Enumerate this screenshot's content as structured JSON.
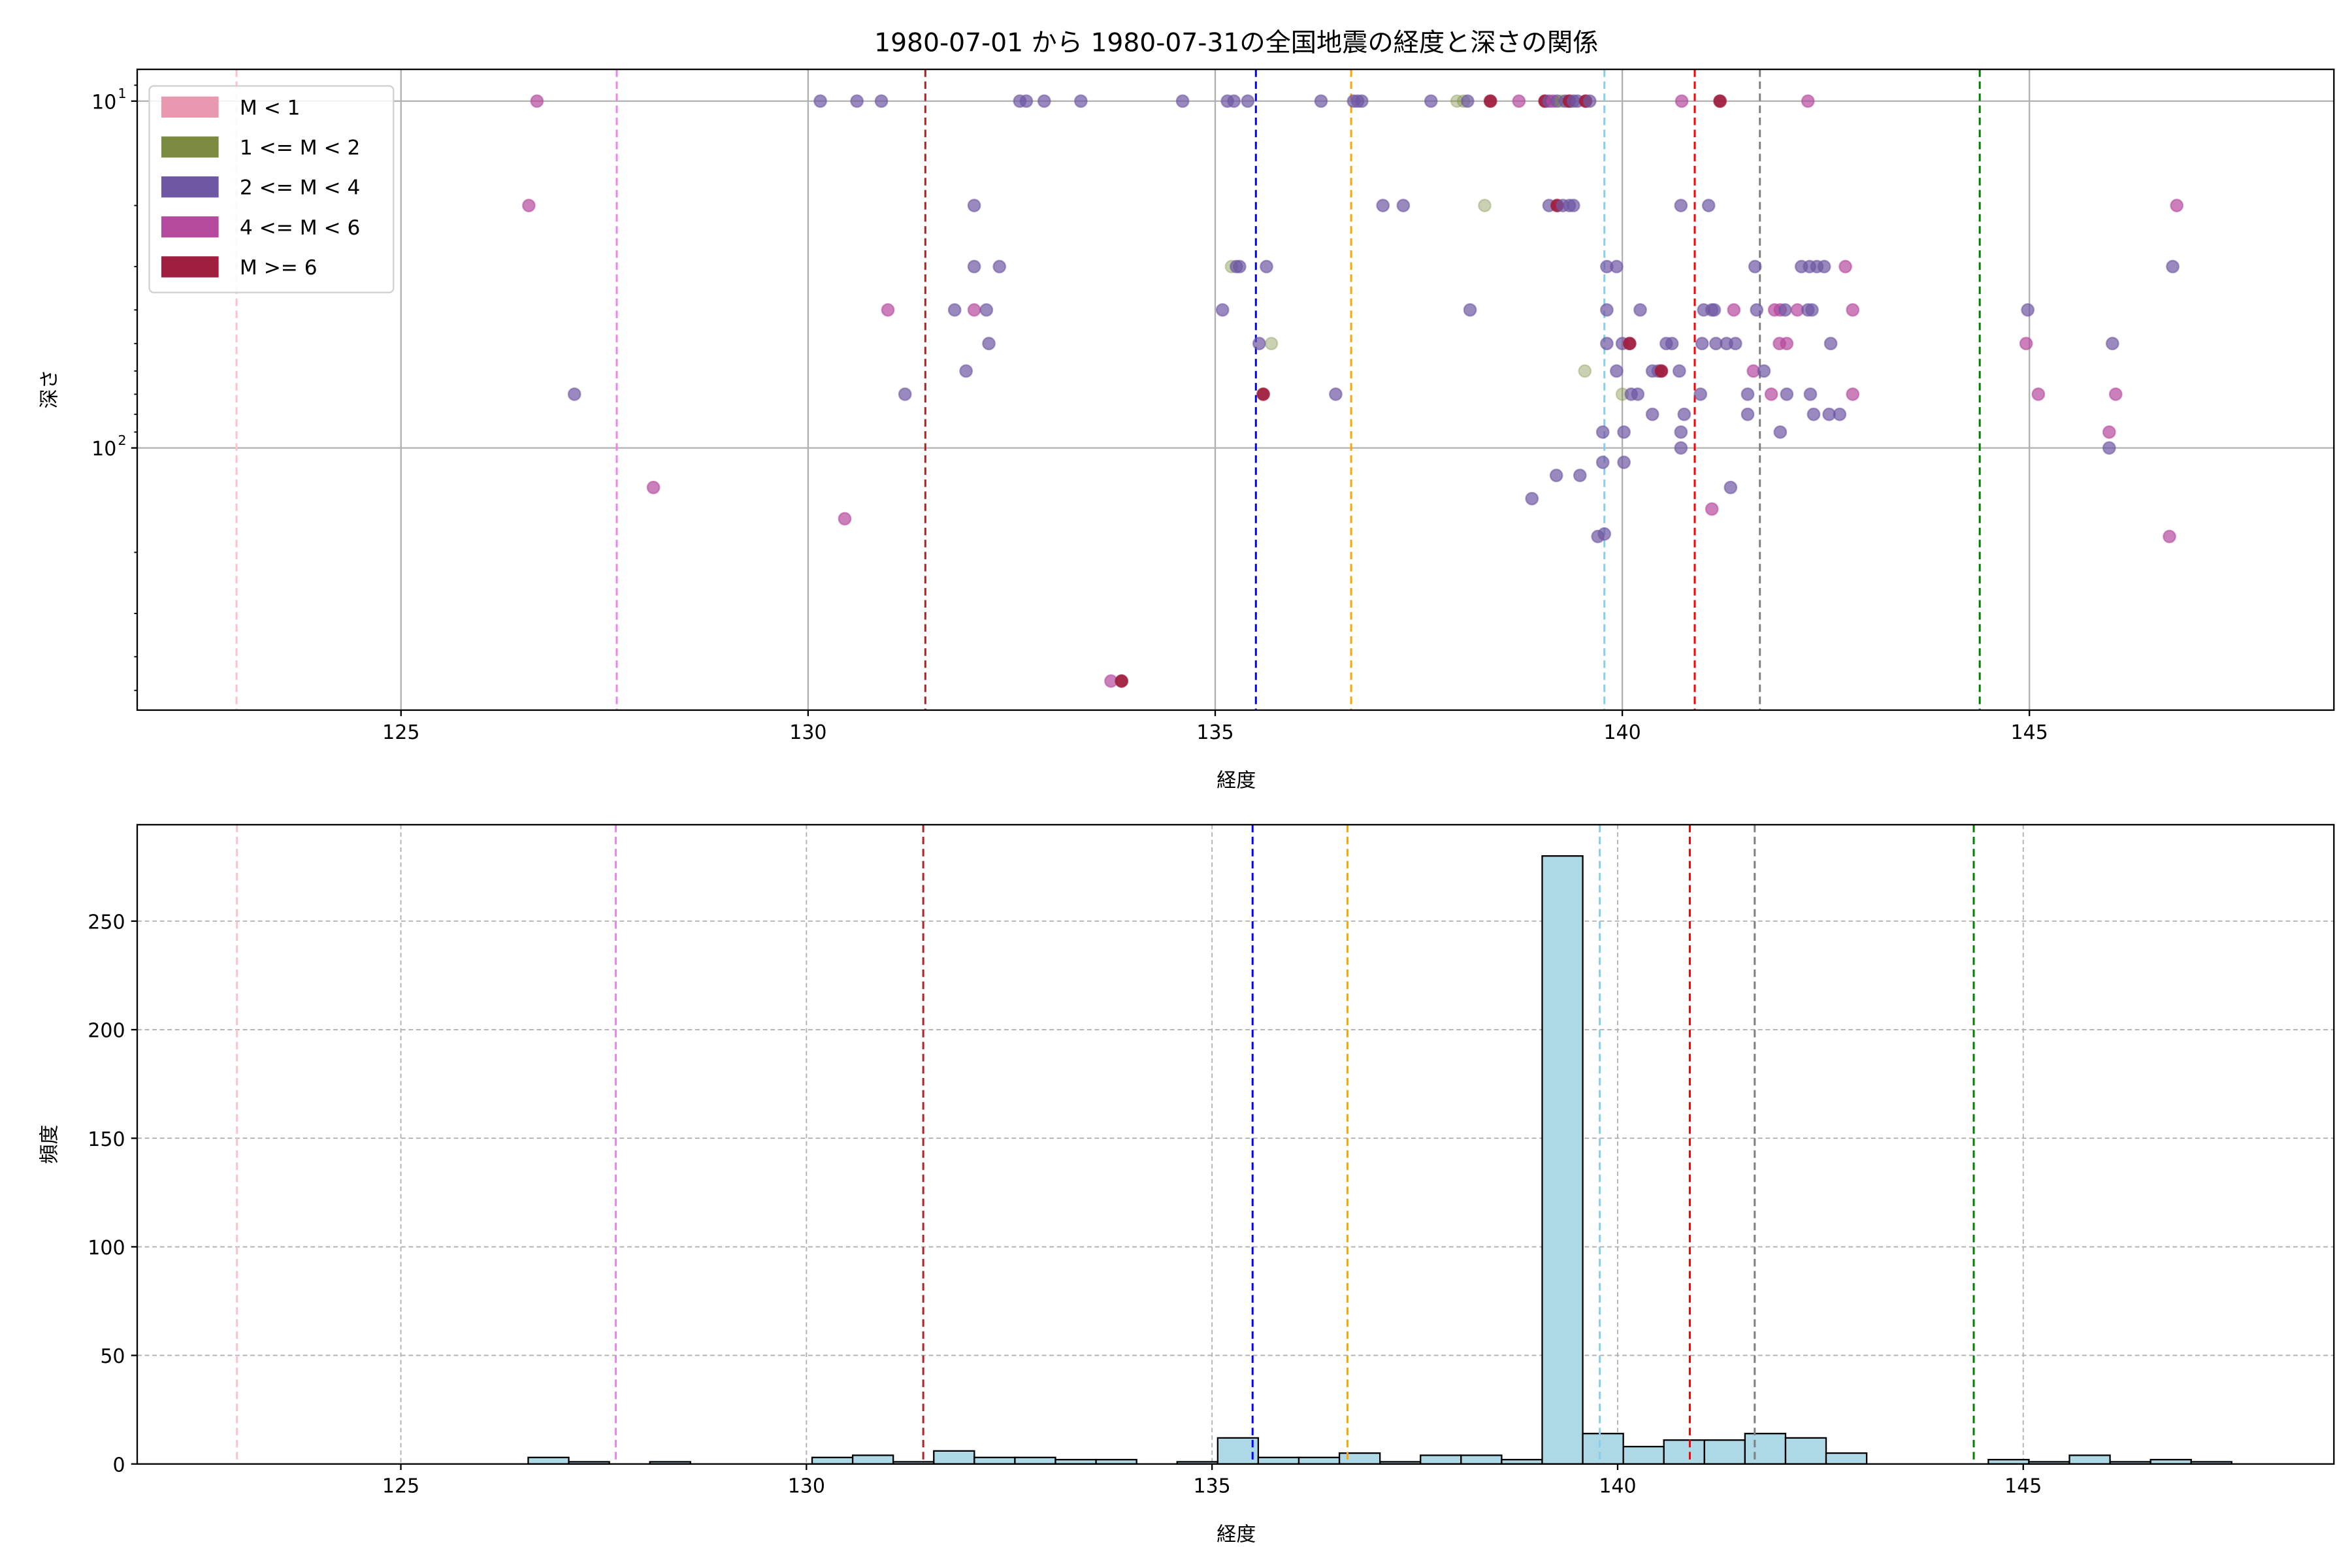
{
  "chart_data": [
    {
      "type": "scatter",
      "title": "1980-07-01 から 1980-07-31の全国地震の経度と深さの関係",
      "xlabel": "経度",
      "ylabel": "深さ",
      "xlim": [
        121.76,
        148.74
      ],
      "ylim": [
        8.1,
        570
      ],
      "y_scale": "log",
      "y_inverted": true,
      "grid": true,
      "x_ticks": [
        125,
        130,
        135,
        140,
        145
      ],
      "x_tick_labels": [
        "125",
        "130",
        "135",
        "140",
        "145"
      ],
      "y_ticks": [
        {
          "value": 10,
          "base": "10",
          "exp": "1"
        },
        {
          "value": 100,
          "base": "10",
          "exp": "2"
        }
      ],
      "legend": {
        "placement": "top-left",
        "entries": [
          {
            "label": "M < 1",
            "color": "#e899b0"
          },
          {
            "label": "1 <= M < 2",
            "color": "#7a8b3f"
          },
          {
            "label": "2 <= M < 4",
            "color": "#6e57a3"
          },
          {
            "label": "4 <= M < 6",
            "color": "#b5499e"
          },
          {
            "label": "M >= 6",
            "color": "#a01e3e"
          }
        ]
      },
      "reference_lines": [
        {
          "x": 122.98,
          "color": "#ffc0cb"
        },
        {
          "x": 127.65,
          "color": "#ee82ee"
        },
        {
          "x": 131.44,
          "color": "#b22222"
        },
        {
          "x": 135.5,
          "color": "#0000ff"
        },
        {
          "x": 136.67,
          "color": "#ffa500"
        },
        {
          "x": 139.78,
          "color": "#87ceeb"
        },
        {
          "x": 140.89,
          "color": "#ff0000"
        },
        {
          "x": 141.69,
          "color": "#808080"
        },
        {
          "x": 144.39,
          "color": "#008000"
        }
      ],
      "points_format": [
        "longitude",
        "depth",
        "magnitude_class_index"
      ],
      "points": [
        [
          126.67,
          10,
          3
        ],
        [
          130.15,
          10,
          2
        ],
        [
          130.6,
          10,
          2
        ],
        [
          130.9,
          10,
          2
        ],
        [
          132.6,
          10,
          2
        ],
        [
          132.68,
          10,
          2
        ],
        [
          132.9,
          10,
          2
        ],
        [
          133.35,
          10,
          2
        ],
        [
          134.6,
          10,
          2
        ],
        [
          135.15,
          10,
          2
        ],
        [
          135.23,
          10,
          2
        ],
        [
          135.4,
          10,
          2
        ],
        [
          136.3,
          10,
          2
        ],
        [
          136.7,
          10,
          2
        ],
        [
          136.75,
          10,
          2
        ],
        [
          136.8,
          10,
          2
        ],
        [
          137.65,
          10,
          2
        ],
        [
          137.97,
          10,
          1
        ],
        [
          138.05,
          10,
          1
        ],
        [
          138.1,
          10,
          2
        ],
        [
          138.38,
          10,
          4
        ],
        [
          138.73,
          10,
          3
        ],
        [
          139.05,
          10,
          4
        ],
        [
          139.1,
          10,
          2
        ],
        [
          139.15,
          10,
          3
        ],
        [
          139.2,
          10,
          2
        ],
        [
          139.25,
          10,
          1
        ],
        [
          139.3,
          10,
          2
        ],
        [
          139.35,
          10,
          4
        ],
        [
          139.4,
          10,
          2
        ],
        [
          139.45,
          10,
          2
        ],
        [
          139.55,
          10,
          4
        ],
        [
          139.6,
          10,
          2
        ],
        [
          140.73,
          10,
          3
        ],
        [
          141.2,
          10,
          4
        ],
        [
          142.28,
          10,
          3
        ],
        [
          126.57,
          20,
          3
        ],
        [
          132.04,
          20,
          2
        ],
        [
          137.06,
          20,
          2
        ],
        [
          137.31,
          20,
          2
        ],
        [
          138.31,
          20,
          1
        ],
        [
          139.1,
          20,
          2
        ],
        [
          139.2,
          20,
          4
        ],
        [
          139.27,
          20,
          2
        ],
        [
          139.35,
          20,
          2
        ],
        [
          139.4,
          20,
          2
        ],
        [
          140.72,
          20,
          2
        ],
        [
          141.06,
          20,
          2
        ],
        [
          146.81,
          20,
          3
        ],
        [
          132.04,
          30,
          2
        ],
        [
          132.35,
          30,
          2
        ],
        [
          135.2,
          30,
          1
        ],
        [
          135.26,
          30,
          2
        ],
        [
          135.3,
          30,
          2
        ],
        [
          135.63,
          30,
          2
        ],
        [
          139.81,
          30,
          2
        ],
        [
          139.93,
          30,
          2
        ],
        [
          141.63,
          30,
          2
        ],
        [
          142.2,
          30,
          2
        ],
        [
          142.3,
          30,
          2
        ],
        [
          142.39,
          30,
          2
        ],
        [
          142.48,
          30,
          2
        ],
        [
          142.74,
          30,
          3
        ],
        [
          146.76,
          30,
          2
        ],
        [
          130.98,
          40,
          3
        ],
        [
          131.8,
          40,
          2
        ],
        [
          132.04,
          40,
          3
        ],
        [
          132.19,
          40,
          2
        ],
        [
          135.09,
          40,
          2
        ],
        [
          138.13,
          40,
          2
        ],
        [
          139.81,
          40,
          2
        ],
        [
          140.22,
          40,
          2
        ],
        [
          141.0,
          40,
          2
        ],
        [
          141.1,
          40,
          2
        ],
        [
          141.13,
          40,
          2
        ],
        [
          141.37,
          40,
          3
        ],
        [
          141.65,
          40,
          2
        ],
        [
          141.87,
          40,
          3
        ],
        [
          141.94,
          40,
          3
        ],
        [
          142.0,
          40,
          2
        ],
        [
          142.15,
          40,
          3
        ],
        [
          142.28,
          40,
          2
        ],
        [
          142.33,
          40,
          2
        ],
        [
          142.83,
          40,
          3
        ],
        [
          144.98,
          40,
          2
        ],
        [
          132.22,
          50,
          2
        ],
        [
          135.54,
          50,
          2
        ],
        [
          135.69,
          50,
          1
        ],
        [
          139.81,
          50,
          2
        ],
        [
          140.0,
          50,
          2
        ],
        [
          140.09,
          50,
          4
        ],
        [
          140.54,
          50,
          2
        ],
        [
          140.61,
          50,
          2
        ],
        [
          140.98,
          50,
          2
        ],
        [
          141.15,
          50,
          2
        ],
        [
          141.28,
          50,
          2
        ],
        [
          141.39,
          50,
          2
        ],
        [
          141.93,
          50,
          3
        ],
        [
          142.02,
          50,
          3
        ],
        [
          142.56,
          50,
          2
        ],
        [
          144.96,
          50,
          3
        ],
        [
          146.02,
          50,
          2
        ],
        [
          131.94,
          60,
          2
        ],
        [
          139.54,
          60,
          1
        ],
        [
          139.93,
          60,
          2
        ],
        [
          140.37,
          60,
          2
        ],
        [
          140.44,
          60,
          2
        ],
        [
          140.48,
          60,
          4
        ],
        [
          140.7,
          60,
          2
        ],
        [
          141.61,
          60,
          3
        ],
        [
          141.74,
          60,
          2
        ],
        [
          127.13,
          70,
          2
        ],
        [
          131.19,
          70,
          2
        ],
        [
          135.59,
          70,
          4
        ],
        [
          136.48,
          70,
          2
        ],
        [
          140.0,
          70,
          1
        ],
        [
          140.11,
          70,
          2
        ],
        [
          140.19,
          70,
          2
        ],
        [
          140.96,
          70,
          2
        ],
        [
          141.54,
          70,
          2
        ],
        [
          141.83,
          70,
          3
        ],
        [
          142.02,
          70,
          2
        ],
        [
          142.31,
          70,
          2
        ],
        [
          142.83,
          70,
          3
        ],
        [
          145.11,
          70,
          3
        ],
        [
          146.06,
          70,
          3
        ],
        [
          140.37,
          80,
          2
        ],
        [
          140.76,
          80,
          2
        ],
        [
          141.54,
          80,
          2
        ],
        [
          142.35,
          80,
          2
        ],
        [
          142.54,
          80,
          2
        ],
        [
          142.67,
          80,
          2
        ],
        [
          139.76,
          90,
          2
        ],
        [
          140.02,
          90,
          2
        ],
        [
          140.72,
          90,
          2
        ],
        [
          141.94,
          90,
          2
        ],
        [
          145.98,
          90,
          3
        ],
        [
          140.72,
          100,
          2
        ],
        [
          145.98,
          100,
          2
        ],
        [
          139.76,
          110,
          2
        ],
        [
          140.02,
          110,
          2
        ],
        [
          139.19,
          120,
          2
        ],
        [
          139.48,
          120,
          2
        ],
        [
          141.33,
          130,
          2
        ],
        [
          128.1,
          130,
          3
        ],
        [
          138.89,
          140,
          2
        ],
        [
          141.1,
          150,
          3
        ],
        [
          130.45,
          160,
          3
        ],
        [
          139.7,
          180,
          2
        ],
        [
          139.78,
          177,
          2
        ],
        [
          146.72,
          180,
          3
        ],
        [
          133.72,
          470,
          3
        ],
        [
          133.85,
          470,
          4
        ]
      ]
    },
    {
      "type": "bar",
      "subtype": "histogram",
      "xlabel": "経度",
      "ylabel": "頻度",
      "xlim": [
        121.75,
        148.83
      ],
      "ylim": [
        0,
        294.4
      ],
      "grid": true,
      "bar_color": "#add8e6",
      "edge_color": "#000000",
      "bin_start": 126.57,
      "bin_width": 0.5,
      "counts": [
        3,
        1,
        0,
        1,
        0,
        0,
        0,
        3,
        4,
        1,
        6,
        3,
        3,
        2,
        2,
        0,
        1,
        12,
        3,
        3,
        5,
        1,
        4,
        4,
        2,
        280,
        14,
        8,
        11,
        11,
        14,
        12,
        5,
        0,
        0,
        0,
        2,
        1,
        4,
        1,
        2,
        1
      ],
      "x_ticks": [
        125,
        130,
        135,
        140,
        145
      ],
      "x_tick_labels": [
        "125",
        "130",
        "135",
        "140",
        "145"
      ],
      "y_ticks": [
        0,
        50,
        100,
        150,
        200,
        250
      ],
      "y_tick_labels": [
        "0",
        "50",
        "100",
        "150",
        "200",
        "250"
      ],
      "reference_lines": [
        {
          "x": 122.98,
          "color": "#ffc0cb"
        },
        {
          "x": 127.65,
          "color": "#ee82ee"
        },
        {
          "x": 131.44,
          "color": "#b22222"
        },
        {
          "x": 135.5,
          "color": "#0000ff"
        },
        {
          "x": 136.67,
          "color": "#ffa500"
        },
        {
          "x": 139.78,
          "color": "#87ceeb"
        },
        {
          "x": 140.89,
          "color": "#ff0000"
        },
        {
          "x": 141.69,
          "color": "#808080"
        },
        {
          "x": 144.39,
          "color": "#008000"
        }
      ]
    }
  ]
}
